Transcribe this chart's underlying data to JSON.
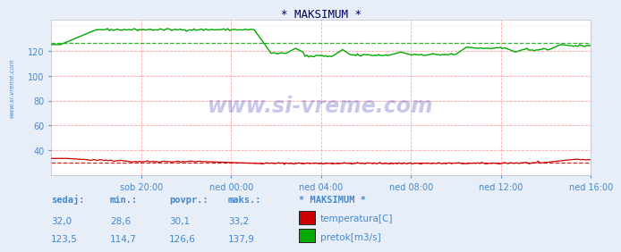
{
  "title": "* MAKSIMUM *",
  "bg_color": "#e8eef8",
  "plot_bg_color": "#ffffff",
  "grid_color_major": "#ffaaaa",
  "xlabel_color": "#4488cc",
  "ylabel_color": "#4488cc",
  "title_color": "#000066",
  "watermark": "www.si-vreme.com",
  "watermark_color": "#0000aa",
  "sidebar_text": "www.si-vreme.com",
  "ylim": [
    20,
    145
  ],
  "yticks": [
    40,
    60,
    80,
    100,
    120
  ],
  "xtick_labels": [
    "sob 20:00",
    "ned 00:00",
    "ned 04:00",
    "ned 08:00",
    "ned 12:00",
    "ned 16:00"
  ],
  "temp_color": "#cc0000",
  "flow_color": "#00aa00",
  "temp_avg_dashed": 30.1,
  "flow_avg_dashed": 126.6,
  "legend_title": "* MAKSIMUM *",
  "legend_items": [
    {
      "label": "temperatura[C]",
      "color": "#cc0000"
    },
    {
      "label": "pretok[m3/s]",
      "color": "#00aa00"
    }
  ],
  "table_headers": [
    "sedaj:",
    "min.:",
    "povpr.:",
    "maks.:"
  ],
  "table_rows": [
    [
      "32,0",
      "28,6",
      "30,1",
      "33,2"
    ],
    [
      "123,5",
      "114,7",
      "126,6",
      "137,9"
    ]
  ],
  "n_points": 288
}
